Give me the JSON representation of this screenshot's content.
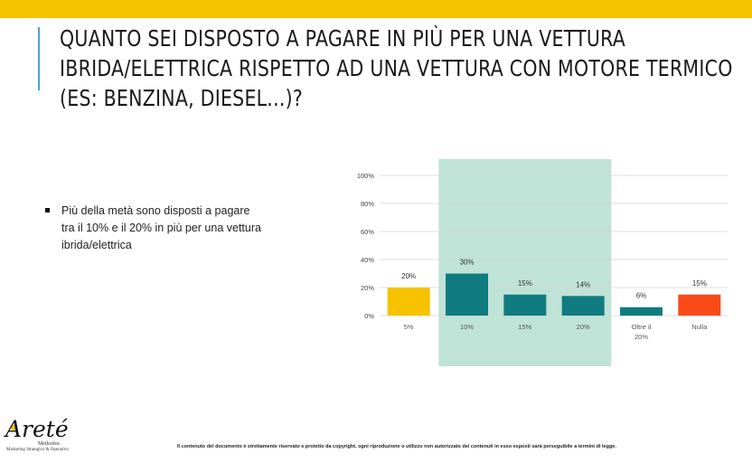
{
  "header": {
    "title": "QUANTO SEI DISPOSTO A PAGARE IN PIÙ PER UNA VETTURA IBRIDA/ELETTRICA RISPETTO AD UNA VETTURA CON MOTORE TERMICO (ES: BENZINA, DIESEL...)?"
  },
  "bullet": {
    "text": "Più della metà sono disposti a pagare tra il 10% e il 20% in più per una vettura ibrida/elettrica"
  },
  "chart_data": {
    "type": "bar",
    "categories": [
      "5%",
      "10%",
      "15%",
      "20%",
      "Oltre il 20%",
      "Nulla"
    ],
    "values": [
      20,
      30,
      15,
      14,
      6,
      15
    ],
    "value_labels": [
      "20%",
      "30%",
      "15%",
      "14%",
      "6%",
      "15%"
    ],
    "colors": [
      "#f7c200",
      "#107c80",
      "#107c80",
      "#107c80",
      "#107c80",
      "#f94a18"
    ],
    "highlight_range": [
      "10%",
      "20%"
    ],
    "highlight_color": "#bfe3d6",
    "ylim": [
      0,
      100
    ],
    "yticks": [
      0,
      20,
      40,
      60,
      80,
      100
    ],
    "ytick_labels": [
      "0%",
      "20%",
      "40%",
      "60%",
      "80%",
      "100%"
    ],
    "grid": true,
    "title": "",
    "xlabel": "",
    "ylabel": ""
  },
  "footer": {
    "text": "Il contenuto del documento è strettamente riservato e protetto da copyright, ogni riproduzione o utilizzo non autorizzato dei contenuti in esso esposti sarà perseguibile a termini di legge."
  },
  "logo": {
    "name": "Areté",
    "tagline": "Methodos",
    "subtitle": "Marketing Strategico & Operativo"
  },
  "colors": {
    "top_bar": "#f7c200",
    "accent_line": "#4aa3c9"
  }
}
